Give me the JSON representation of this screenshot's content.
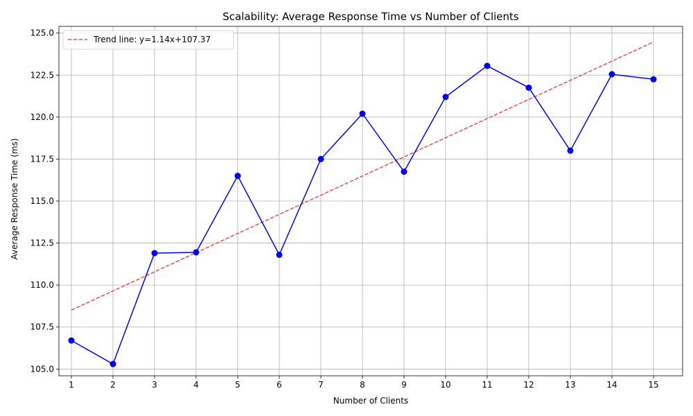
{
  "chart_data": {
    "type": "line",
    "title": "Scalability: Average Response Time vs Number of Clients",
    "xlabel": "Number of Clients",
    "ylabel": "Average Response Time (ms)",
    "x": [
      1,
      2,
      3,
      4,
      5,
      6,
      7,
      8,
      9,
      10,
      11,
      12,
      13,
      14,
      15
    ],
    "xlim": [
      0.7,
      15.7
    ],
    "ylim": [
      104.6,
      125.4
    ],
    "yticks": [
      "105.0",
      "107.5",
      "110.0",
      "112.5",
      "115.0",
      "117.5",
      "120.0",
      "122.5",
      "125.0"
    ],
    "ytick_values": [
      105.0,
      107.5,
      110.0,
      112.5,
      115.0,
      117.5,
      120.0,
      122.5,
      125.0
    ],
    "grid": true,
    "legend_position": "top-left",
    "series": [
      {
        "values": [
          106.7,
          105.3,
          111.9,
          111.95,
          116.5,
          111.8,
          117.5,
          120.2,
          116.75,
          121.2,
          123.05,
          121.75,
          118.0,
          122.55,
          122.25
        ],
        "color": "#0000ff",
        "marker": "circle"
      },
      {
        "name": "Trend line: y=1.14x+107.37",
        "slope": 1.14,
        "intercept": 107.37,
        "color": "#ef4e4e",
        "style": "dashed"
      }
    ]
  }
}
